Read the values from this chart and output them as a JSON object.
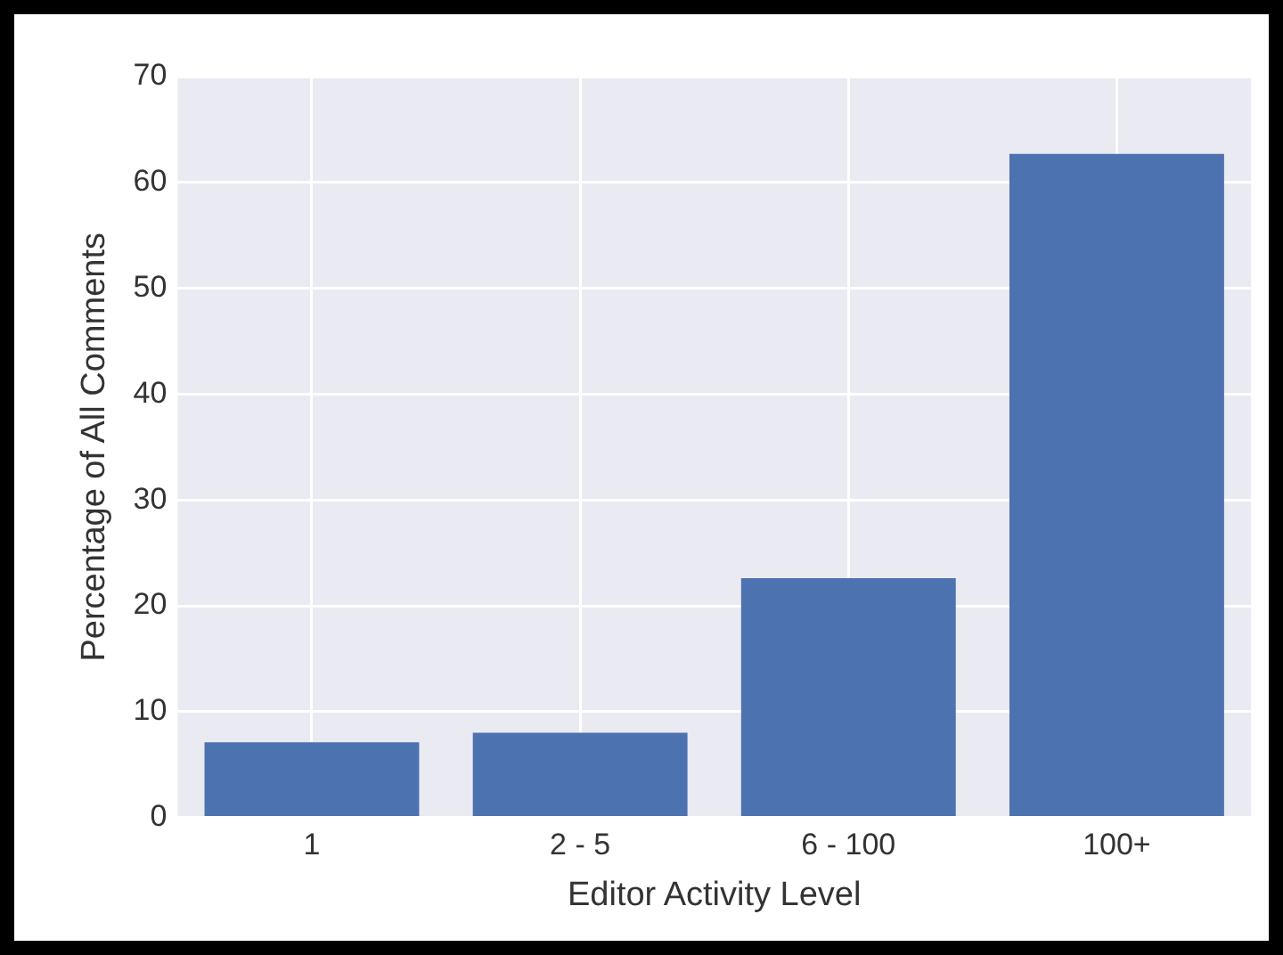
{
  "chart_data": {
    "type": "bar",
    "categories": [
      "1",
      "2 - 5",
      "6 - 100",
      "100+"
    ],
    "values": [
      7.1,
      8.0,
      22.6,
      62.7
    ],
    "color": "#4c72b0",
    "xlabel": "Editor Activity Level",
    "ylabel": "Percentage of All Comments",
    "ylim": [
      0,
      70
    ],
    "yticks": [
      0,
      10,
      20,
      30,
      40,
      50,
      60,
      70
    ],
    "grid": true
  }
}
